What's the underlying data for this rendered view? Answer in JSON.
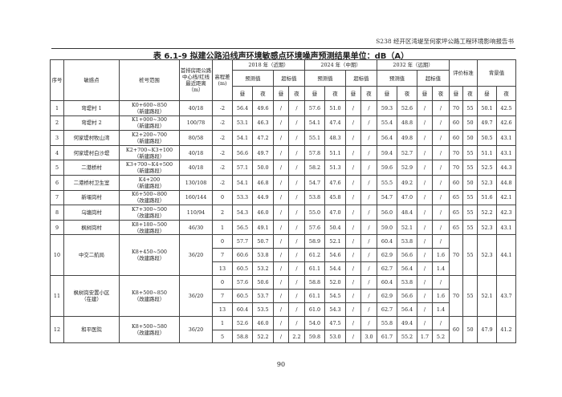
{
  "header": {
    "running_title": "S238 经开区湾堤至何家坪公路工程环境影响报告书"
  },
  "title": "表 6.1-9 拟建公路沿线声环境敏感点环境噪声预测结果单位：dB（A）",
  "columns": {
    "no": "序号",
    "point": "敏感点",
    "chainage": "桩号范围",
    "distance": "首排房距公路中心线/红线最近距离（m）",
    "elevation": "高程差(m)",
    "periods": [
      "2018 年（近期）",
      "2024 年（中期）",
      "2032 年（远期）"
    ],
    "predicted": "预测值",
    "exceed": "超标值",
    "standard": "评价标准",
    "background": "背景值",
    "day": "昼",
    "night": "夜"
  },
  "rows": [
    {
      "no": "1",
      "point": "弯堤村 1",
      "chainage": "K0+600~850",
      "section": "（新建路段）",
      "distance": "40/18",
      "std": [
        "70",
        "55"
      ],
      "bg": [
        "50.1",
        "42.5"
      ],
      "subs": [
        [
          "-2",
          "56.4",
          "49.6",
          "/",
          "/",
          "57.6",
          "51.0",
          "/",
          "/",
          "59.3",
          "52.6",
          "/",
          "/"
        ]
      ]
    },
    {
      "no": "2",
      "point": "弯堤村 2",
      "chainage": "K1+000~300",
      "section": "（新建路段）",
      "distance": "100/78",
      "std": [
        "60",
        "50"
      ],
      "bg": [
        "49.7",
        "42.6"
      ],
      "subs": [
        [
          "-2",
          "53.1",
          "46.3",
          "/",
          "/",
          "54.1",
          "47.4",
          "/",
          "/",
          "55.4",
          "48.8",
          "/",
          "/"
        ]
      ]
    },
    {
      "no": "3",
      "point": "何家堤村牧山湾",
      "chainage": "K2+200~700",
      "section": "（新建路段）",
      "distance": "80/58",
      "std": [
        "60",
        "50"
      ],
      "bg": [
        "50.5",
        "43.1"
      ],
      "subs": [
        [
          "-2",
          "54.1",
          "47.2",
          "/",
          "/",
          "55.1",
          "48.3",
          "/",
          "/",
          "56.4",
          "49.8",
          "/",
          "/"
        ]
      ]
    },
    {
      "no": "4",
      "point": "何家堤村白沙堤",
      "chainage": "K2+700~K3+100",
      "section": "（新建路段）",
      "distance": "40/18",
      "std": [
        "70",
        "55"
      ],
      "bg": [
        "51.1",
        "43.1"
      ],
      "subs": [
        [
          "-2",
          "56.6",
          "49.7",
          "/",
          "/",
          "57.8",
          "51.1",
          "/",
          "/",
          "59.4",
          "52.7",
          "/",
          "/"
        ]
      ]
    },
    {
      "no": "5",
      "point": "二港桥村",
      "chainage": "K3+700~K4+500",
      "section": "（新建路段）",
      "distance": "40/18",
      "std": [
        "70",
        "55"
      ],
      "bg": [
        "52.5",
        "44.3"
      ],
      "subs": [
        [
          "-2",
          "57.1",
          "50.0",
          "/",
          "/",
          "58.2",
          "51.3",
          "/",
          "/",
          "59.6",
          "52.9",
          "/",
          "/"
        ]
      ]
    },
    {
      "no": "6",
      "point": "二港桥村卫生室",
      "chainage": "K4+200",
      "section": "（新建路段）",
      "distance": "130/108",
      "std": [
        "60",
        "50"
      ],
      "bg": [
        "52.3",
        "44.8"
      ],
      "subs": [
        [
          "-2",
          "54.1",
          "46.8",
          "/",
          "/",
          "54.7",
          "47.6",
          "/",
          "/",
          "55.5",
          "49.2",
          "/",
          "/"
        ]
      ]
    },
    {
      "no": "7",
      "point": "新堰岗村",
      "chainage": "K6+500~800",
      "section": "（改建路段）",
      "distance": "160/144",
      "std": [
        "65",
        "55"
      ],
      "bg": [
        "51.6",
        "42.1"
      ],
      "subs": [
        [
          "0",
          "53.3",
          "44.9",
          "/",
          "/",
          "53.8",
          "45.8",
          "/",
          "/",
          "54.7",
          "47.0",
          "/",
          "/"
        ]
      ]
    },
    {
      "no": "8",
      "point": "乌塘岗村",
      "chainage": "K7+300~500",
      "section": "（改建路段）",
      "distance": "110/94",
      "std": [
        "65",
        "55"
      ],
      "bg": [
        "52.2",
        "42.3"
      ],
      "subs": [
        [
          "2",
          "54.3",
          "46.0",
          "/",
          "/",
          "55.0",
          "47.0",
          "/",
          "/",
          "56.0",
          "48.4",
          "/",
          "/"
        ]
      ]
    },
    {
      "no": "9",
      "point": "枫树岗村",
      "chainage": "K8+180~500",
      "section": "（改建路段）",
      "distance": "46/30",
      "std": [
        "65",
        "55"
      ],
      "bg": [
        "52.3",
        "43.1"
      ],
      "subs": [
        [
          "1",
          "56.5",
          "49.1",
          "/",
          "/",
          "57.6",
          "50.4",
          "/",
          "/",
          "59.0",
          "52.1",
          "/",
          "/"
        ]
      ]
    },
    {
      "no": "10",
      "point": "中交二航局",
      "chainage": "K8+450~500",
      "section": "（改建路段）",
      "distance": "36/20",
      "std": [
        "70",
        "55"
      ],
      "bg": [
        "52.3",
        "44.1"
      ],
      "subs": [
        [
          "0",
          "57.7",
          "50.7",
          "/",
          "/",
          "58.9",
          "52.1",
          "/",
          "/",
          "60.4",
          "53.8",
          "/",
          "/"
        ],
        [
          "7",
          "60.6",
          "53.8",
          "/",
          "/",
          "61.2",
          "54.6",
          "/",
          "/",
          "62.9",
          "56.6",
          "/",
          "1.6"
        ],
        [
          "13",
          "60.5",
          "53.2",
          "/",
          "/",
          "61.1",
          "54.4",
          "/",
          "/",
          "62.7",
          "56.4",
          "/",
          "1.4"
        ]
      ]
    },
    {
      "no": "11",
      "point": "枫树岗安置小区",
      "point2": "（在建）",
      "chainage": "K8+500~850",
      "section": "（改建路段）",
      "distance": "36/20",
      "std": [
        "70",
        "55"
      ],
      "bg": [
        "52.1",
        "43.7"
      ],
      "subs": [
        [
          "0",
          "57.6",
          "50.6",
          "/",
          "/",
          "58.8",
          "52.0",
          "/",
          "/",
          "60.4",
          "53.8",
          "/",
          "/"
        ],
        [
          "7",
          "60.5",
          "53.7",
          "/",
          "/",
          "61.1",
          "54.5",
          "/",
          "/",
          "62.9",
          "56.6",
          "/",
          "1.6"
        ],
        [
          "13",
          "60.4",
          "53.5",
          "/",
          "/",
          "61.0",
          "54.3",
          "/",
          "/",
          "62.7",
          "56.4",
          "/",
          "1.4"
        ]
      ]
    },
    {
      "no": "12",
      "point": "和平医院",
      "chainage": "K8+500~580",
      "section": "（改建路段）",
      "distance": "36/20",
      "std": [
        "60",
        "50"
      ],
      "bg": [
        "47.9",
        "41.2"
      ],
      "subs": [
        [
          "1",
          "52.6",
          "46.0",
          "/",
          "/",
          "54.0",
          "47.5",
          "/",
          "/",
          "55.8",
          "49.4",
          "/",
          "/"
        ],
        [
          "5",
          "58.8",
          "52.2",
          "/",
          "2.2",
          "59.8",
          "53.0",
          "/",
          "3.0",
          "61.7",
          "55.2",
          "1.7",
          "5.2"
        ]
      ]
    }
  ],
  "page_number": "90"
}
